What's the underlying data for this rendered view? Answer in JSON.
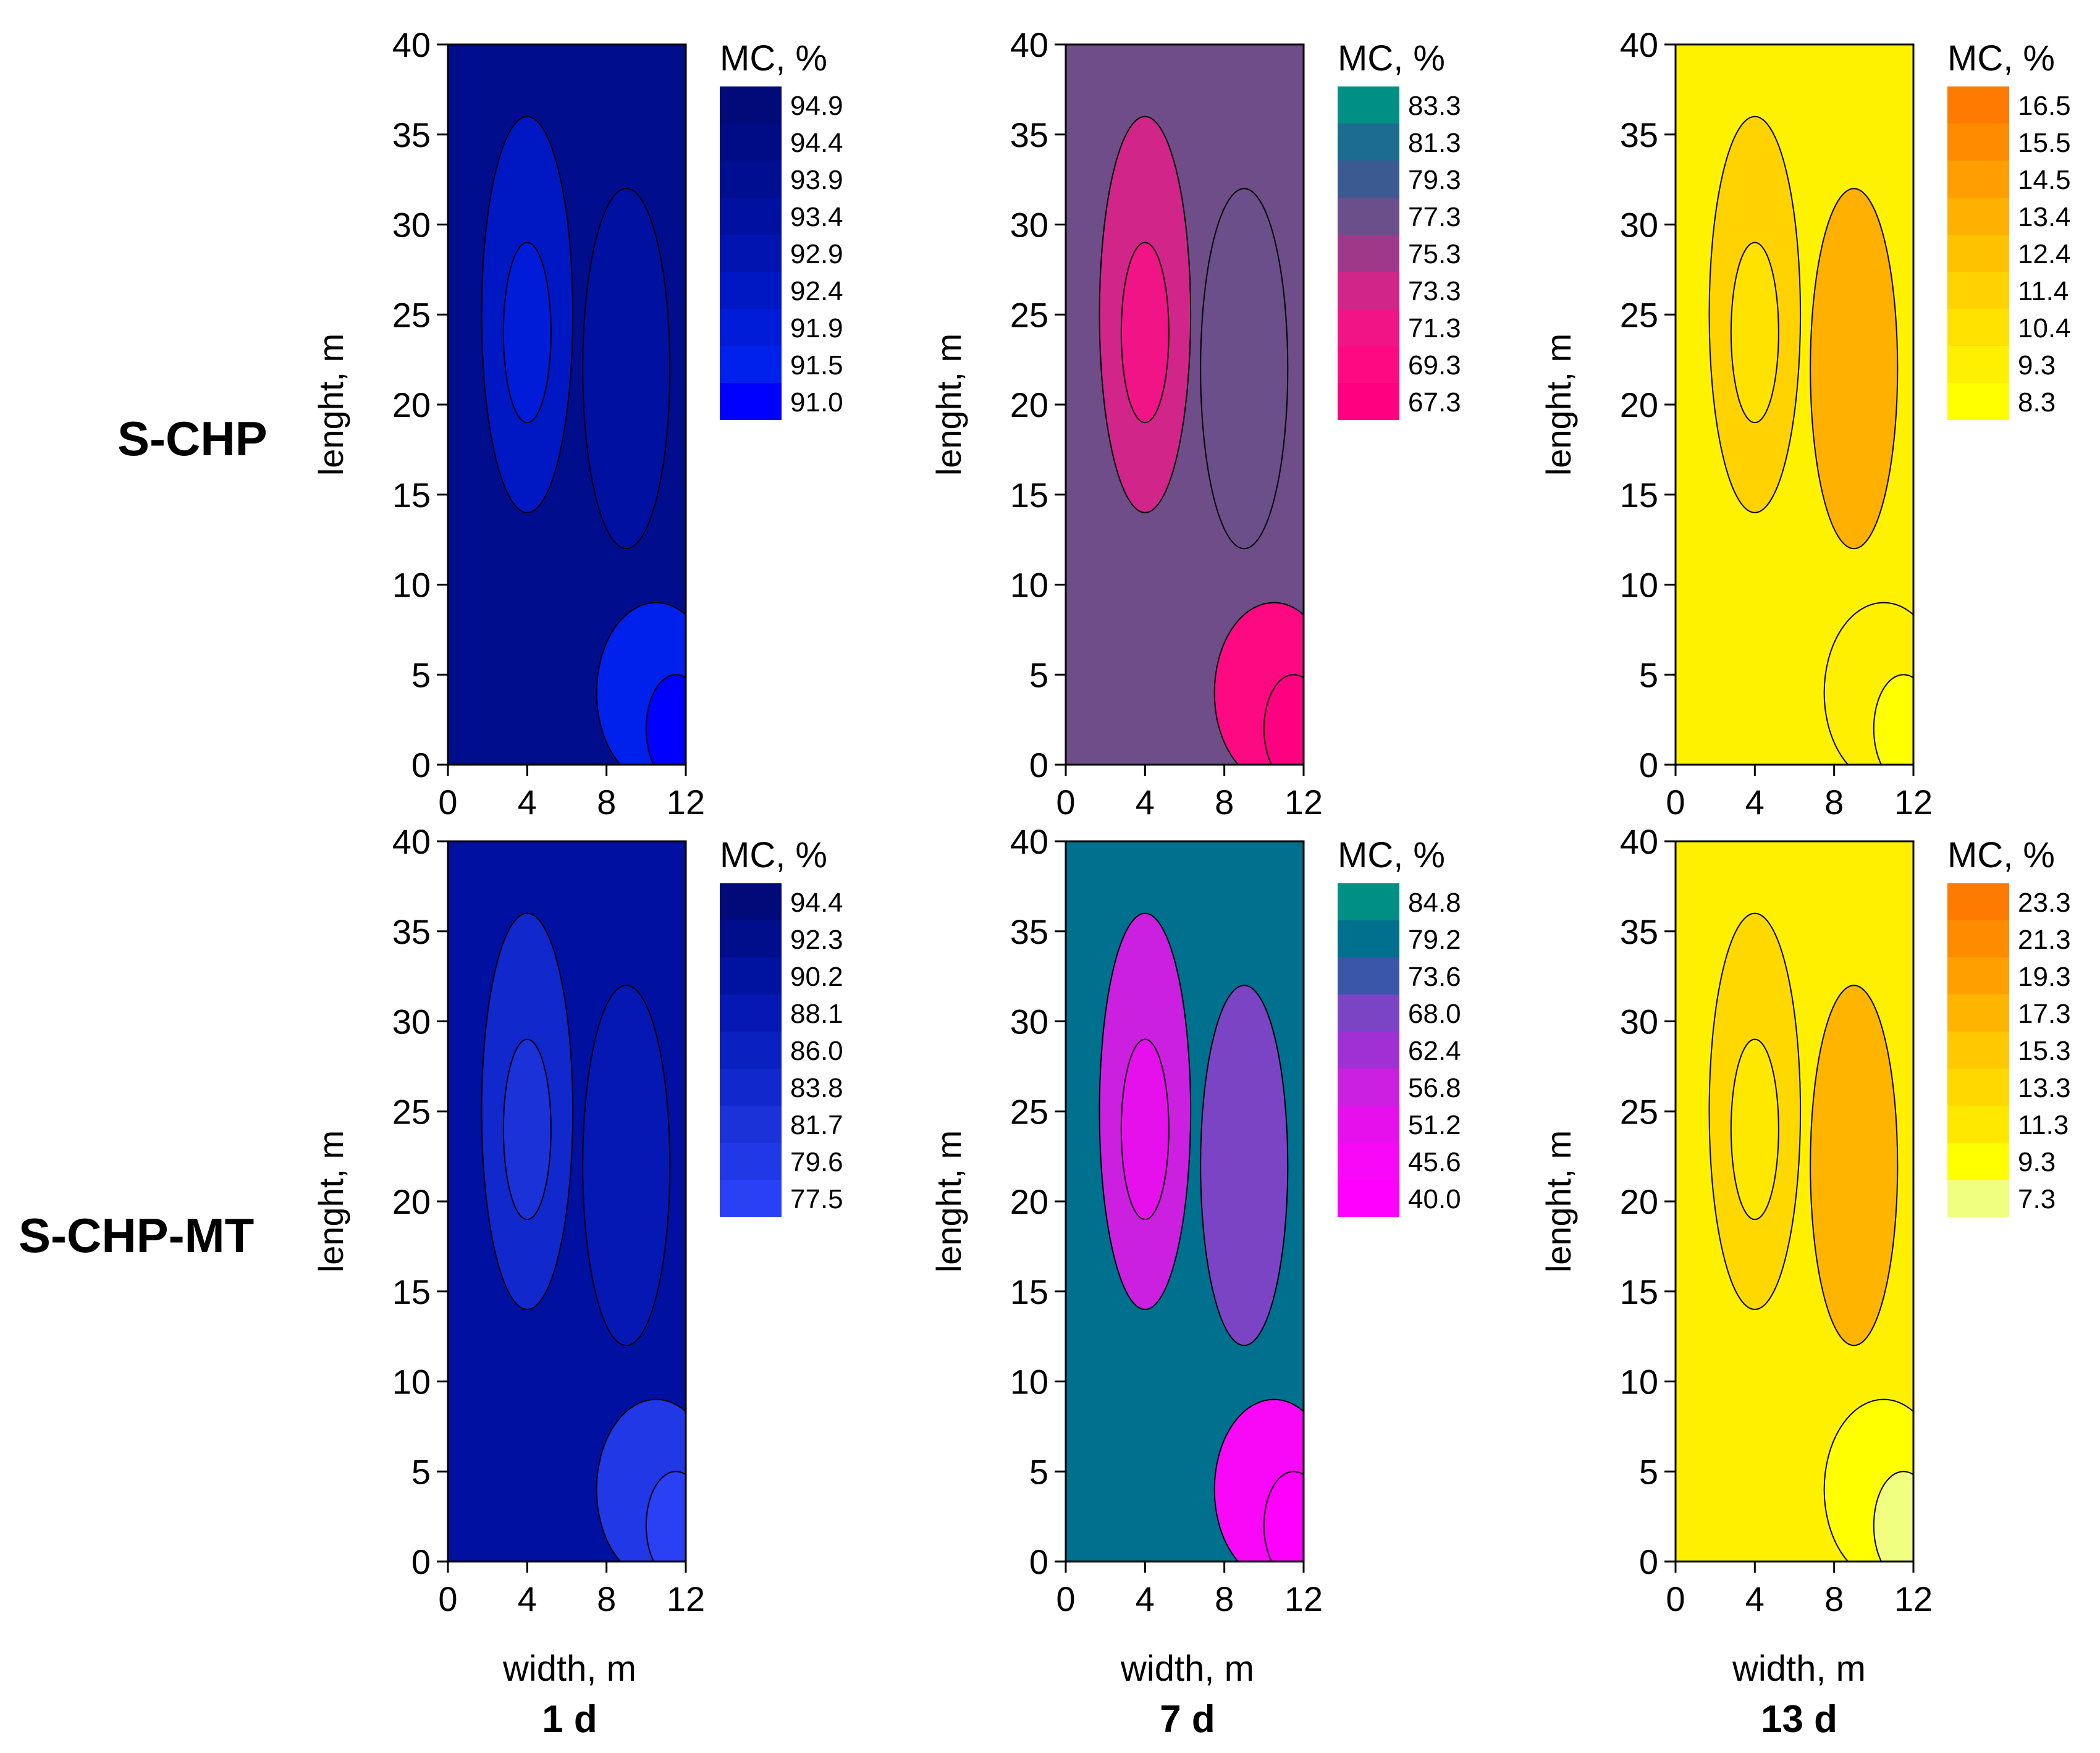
{
  "figure": {
    "row_labels": [
      "S-CHP",
      "S-CHP-MT"
    ],
    "column_labels": [
      "1 d",
      "7 d",
      "13 d"
    ]
  },
  "chart_data": [
    {
      "type": "heatmap",
      "row": "S-CHP",
      "column": "1 d",
      "xlabel": "width, m",
      "ylabel": "lenght, m",
      "xlim": [
        0,
        12
      ],
      "ylim": [
        0,
        40
      ],
      "xticks": [
        "0",
        "4",
        "8",
        "12"
      ],
      "yticks": [
        "0",
        "5",
        "10",
        "15",
        "20",
        "25",
        "30",
        "35",
        "40"
      ],
      "legend_title": "MC, %",
      "legend_levels": [
        "94.9",
        "94.4",
        "93.9",
        "93.4",
        "92.9",
        "92.4",
        "91.9",
        "91.5",
        "91.0"
      ],
      "legend_colors": [
        "#000a78",
        "#000c85",
        "#000e92",
        "#0010a0",
        "#0014b0",
        "#0018c4",
        "#001cd8",
        "#0020ec",
        "#0000ff"
      ],
      "background_color": "#000d8c"
    },
    {
      "type": "heatmap",
      "row": "S-CHP",
      "column": "7 d",
      "xlabel": "width, m",
      "ylabel": "lenght, m",
      "xlim": [
        0,
        12
      ],
      "ylim": [
        0,
        40
      ],
      "xticks": [
        "0",
        "4",
        "8",
        "12"
      ],
      "yticks": [
        "0",
        "5",
        "10",
        "15",
        "20",
        "25",
        "30",
        "35",
        "40"
      ],
      "legend_title": "MC, %",
      "legend_levels": [
        "83.3",
        "81.3",
        "79.3",
        "77.3",
        "75.3",
        "73.3",
        "71.3",
        "69.3",
        "67.3"
      ],
      "legend_colors": [
        "#008f84",
        "#1b6c8f",
        "#3c5a92",
        "#6a4f8a",
        "#a0388a",
        "#d2258a",
        "#f11486",
        "#fd0a83",
        "#ff0080"
      ],
      "background_color": "#6e4d88"
    },
    {
      "type": "heatmap",
      "row": "S-CHP",
      "column": "13 d",
      "xlabel": "width, m",
      "ylabel": "lenght, m",
      "xlim": [
        0,
        12
      ],
      "ylim": [
        0,
        40
      ],
      "xticks": [
        "0",
        "4",
        "8",
        "12"
      ],
      "yticks": [
        "0",
        "5",
        "10",
        "15",
        "20",
        "25",
        "30",
        "35",
        "40"
      ],
      "legend_title": "MC, %",
      "legend_levels": [
        "16.5",
        "15.5",
        "14.5",
        "13.4",
        "12.4",
        "11.4",
        "10.4",
        "9.3",
        "8.3"
      ],
      "legend_colors": [
        "#ff7a00",
        "#ff8c00",
        "#ff9e00",
        "#ffb000",
        "#ffc200",
        "#ffd200",
        "#ffe200",
        "#fff000",
        "#ffff00"
      ],
      "background_color": "#fff200"
    },
    {
      "type": "heatmap",
      "row": "S-CHP-MT",
      "column": "1 d",
      "xlabel": "width, m",
      "ylabel": "lenght, m",
      "xlim": [
        0,
        12
      ],
      "ylim": [
        0,
        40
      ],
      "xticks": [
        "0",
        "4",
        "8",
        "12"
      ],
      "yticks": [
        "0",
        "5",
        "10",
        "15",
        "20",
        "25",
        "30",
        "35",
        "40"
      ],
      "legend_title": "MC, %",
      "legend_levels": [
        "94.4",
        "92.3",
        "90.2",
        "88.1",
        "86.0",
        "83.8",
        "81.7",
        "79.6",
        "77.5"
      ],
      "legend_colors": [
        "#000a78",
        "#000e8c",
        "#0012a0",
        "#0518b4",
        "#0a20c0",
        "#1028cc",
        "#1a32d8",
        "#2038e6",
        "#2a40f4"
      ],
      "background_color": "#0010a0"
    },
    {
      "type": "heatmap",
      "row": "S-CHP-MT",
      "column": "7 d",
      "xlabel": "width, m",
      "ylabel": "lenght, m",
      "xlim": [
        0,
        12
      ],
      "ylim": [
        0,
        40
      ],
      "xticks": [
        "0",
        "4",
        "8",
        "12"
      ],
      "yticks": [
        "0",
        "5",
        "10",
        "15",
        "20",
        "25",
        "30",
        "35",
        "40"
      ],
      "legend_title": "MC, %",
      "legend_levels": [
        "84.8",
        "79.2",
        "73.6",
        "68.0",
        "62.4",
        "56.8",
        "51.2",
        "45.6",
        "40.0"
      ],
      "legend_colors": [
        "#008f84",
        "#00708f",
        "#3a56a8",
        "#7a44c4",
        "#a030d4",
        "#cc20e0",
        "#e610ec",
        "#f808f6",
        "#ff00ff"
      ],
      "background_color": "#00708f"
    },
    {
      "type": "heatmap",
      "row": "S-CHP-MT",
      "column": "13 d",
      "xlabel": "width, m",
      "ylabel": "lenght, m",
      "xlim": [
        0,
        12
      ],
      "ylim": [
        0,
        40
      ],
      "xticks": [
        "0",
        "4",
        "8",
        "12"
      ],
      "yticks": [
        "0",
        "5",
        "10",
        "15",
        "20",
        "25",
        "30",
        "35",
        "40"
      ],
      "legend_title": "MC, %",
      "legend_levels": [
        "23.3",
        "21.3",
        "19.3",
        "17.3",
        "15.3",
        "13.3",
        "11.3",
        "9.3",
        "7.3"
      ],
      "legend_colors": [
        "#ff7a00",
        "#ff8c00",
        "#ffa000",
        "#ffb400",
        "#ffc800",
        "#ffd800",
        "#ffe800",
        "#ffff00",
        "#f0ff80"
      ],
      "background_color": "#fff000"
    }
  ]
}
